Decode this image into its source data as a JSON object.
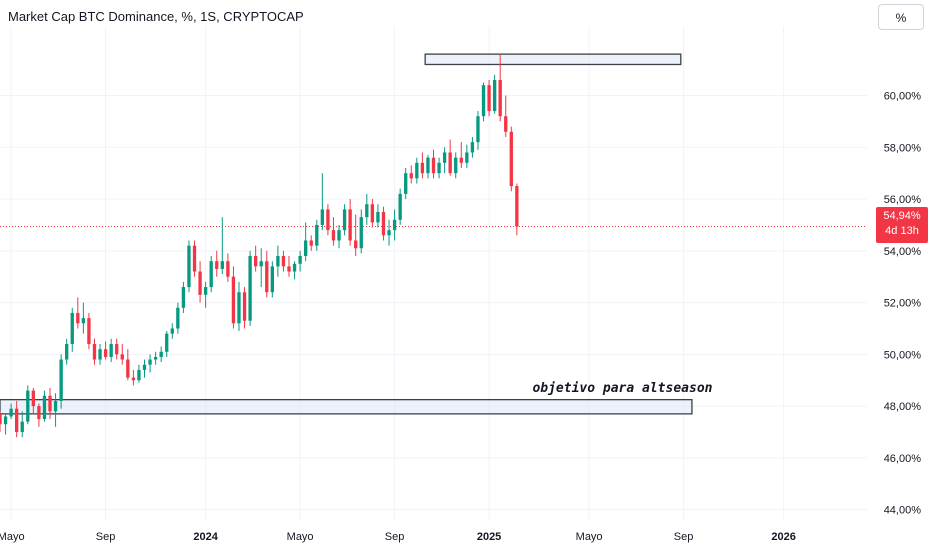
{
  "chart_data": {
    "type": "candlestick",
    "title": "Market Cap BTC Dominance, %, 1S, CRYPTOCAP",
    "y_scale_button": "%",
    "ylim": [
      43.6,
      62.3
    ],
    "y_ticks": [
      "60,00%",
      "58,00%",
      "56,00%",
      "54,00%",
      "52,00%",
      "50,00%",
      "48,00%",
      "46,00%",
      "44,00%"
    ],
    "y_tick_values": [
      60,
      58,
      56,
      54,
      52,
      50,
      48,
      46,
      44
    ],
    "x_ticks": [
      {
        "label": "Mayo",
        "bold": false
      },
      {
        "label": "Sep",
        "bold": false
      },
      {
        "label": "2024",
        "bold": true
      },
      {
        "label": "Mayo",
        "bold": false
      },
      {
        "label": "Sep",
        "bold": false
      },
      {
        "label": "2025",
        "bold": true
      },
      {
        "label": "Mayo",
        "bold": false
      },
      {
        "label": "Sep",
        "bold": false
      },
      {
        "label": "2026",
        "bold": true
      }
    ],
    "x_tick_weeks": [
      13,
      30,
      48,
      65,
      82,
      99,
      117,
      134,
      152
    ],
    "week_range": [
      11,
      167
    ],
    "last_price": "54,94%",
    "last_price_value": 54.94,
    "countdown": "4d 13h",
    "up_color": "#089981",
    "down_color": "#f23645",
    "candles_start_week": 11,
    "candles": [
      [
        47.7,
        47.8,
        47.0,
        47.3
      ],
      [
        47.3,
        47.7,
        46.9,
        47.6
      ],
      [
        47.6,
        48.1,
        47.5,
        47.9
      ],
      [
        47.9,
        48.2,
        46.8,
        47.0
      ],
      [
        47.0,
        47.8,
        46.8,
        47.4
      ],
      [
        47.4,
        48.8,
        47.3,
        48.6
      ],
      [
        48.6,
        48.7,
        47.7,
        48.0
      ],
      [
        48.0,
        48.1,
        47.2,
        47.5
      ],
      [
        47.5,
        48.6,
        47.4,
        48.4
      ],
      [
        48.4,
        48.7,
        47.5,
        47.8
      ],
      [
        47.8,
        48.5,
        47.2,
        48.2
      ],
      [
        48.2,
        50.0,
        47.9,
        49.8
      ],
      [
        49.8,
        50.6,
        49.6,
        50.4
      ],
      [
        50.4,
        51.8,
        50.1,
        51.6
      ],
      [
        51.6,
        52.2,
        51.0,
        51.2
      ],
      [
        51.2,
        52.0,
        50.8,
        51.4
      ],
      [
        51.4,
        51.6,
        50.2,
        50.4
      ],
      [
        50.4,
        50.6,
        49.6,
        49.8
      ],
      [
        49.8,
        50.4,
        49.6,
        50.2
      ],
      [
        50.2,
        50.5,
        49.8,
        49.9
      ],
      [
        49.9,
        50.6,
        49.7,
        50.4
      ],
      [
        50.4,
        50.6,
        49.8,
        50.0
      ],
      [
        50.0,
        50.4,
        49.6,
        49.8
      ],
      [
        49.8,
        50.2,
        49.0,
        49.1
      ],
      [
        49.1,
        49.4,
        48.8,
        49.0
      ],
      [
        49.0,
        49.6,
        48.9,
        49.4
      ],
      [
        49.4,
        49.8,
        49.1,
        49.6
      ],
      [
        49.6,
        50.0,
        49.3,
        49.8
      ],
      [
        49.8,
        50.1,
        49.6,
        49.9
      ],
      [
        49.9,
        50.3,
        49.7,
        50.1
      ],
      [
        50.1,
        50.9,
        49.9,
        50.8
      ],
      [
        50.8,
        51.2,
        50.6,
        51.0
      ],
      [
        51.0,
        52.0,
        50.8,
        51.8
      ],
      [
        51.8,
        52.8,
        51.6,
        52.6
      ],
      [
        52.6,
        54.4,
        52.4,
        54.2
      ],
      [
        54.2,
        54.4,
        53.0,
        53.2
      ],
      [
        53.2,
        53.6,
        52.0,
        52.3
      ],
      [
        52.3,
        52.8,
        51.8,
        52.6
      ],
      [
        52.6,
        53.8,
        52.4,
        53.6
      ],
      [
        53.6,
        54.0,
        53.0,
        53.3
      ],
      [
        53.3,
        55.3,
        53.1,
        53.6
      ],
      [
        53.6,
        53.9,
        52.8,
        53.0
      ],
      [
        53.0,
        53.4,
        51.0,
        51.2
      ],
      [
        51.2,
        52.8,
        50.9,
        52.4
      ],
      [
        52.4,
        52.6,
        51.0,
        51.3
      ],
      [
        51.3,
        54.0,
        51.1,
        53.8
      ],
      [
        53.8,
        54.2,
        53.2,
        53.4
      ],
      [
        53.4,
        54.1,
        52.6,
        53.6
      ],
      [
        53.6,
        54.0,
        52.2,
        52.4
      ],
      [
        52.4,
        53.6,
        52.2,
        53.4
      ],
      [
        53.4,
        54.2,
        53.0,
        53.8
      ],
      [
        53.8,
        54.0,
        53.2,
        53.4
      ],
      [
        53.4,
        53.8,
        53.0,
        53.2
      ],
      [
        53.2,
        53.6,
        52.9,
        53.5
      ],
      [
        53.5,
        54.0,
        53.2,
        53.8
      ],
      [
        53.8,
        55.1,
        53.6,
        54.4
      ],
      [
        54.4,
        54.6,
        54.0,
        54.2
      ],
      [
        54.2,
        55.2,
        54.0,
        55.0
      ],
      [
        55.0,
        57.0,
        54.8,
        55.6
      ],
      [
        55.6,
        55.8,
        54.6,
        54.8
      ],
      [
        54.8,
        55.3,
        54.2,
        54.4
      ],
      [
        54.4,
        55.0,
        54.1,
        54.8
      ],
      [
        54.8,
        55.8,
        54.6,
        55.6
      ],
      [
        55.6,
        56.0,
        54.2,
        54.4
      ],
      [
        54.4,
        55.4,
        53.8,
        54.1
      ],
      [
        54.1,
        55.6,
        53.9,
        55.3
      ],
      [
        55.3,
        56.2,
        55.0,
        55.8
      ],
      [
        55.8,
        56.0,
        54.9,
        55.1
      ],
      [
        55.1,
        55.8,
        54.9,
        55.5
      ],
      [
        55.5,
        55.7,
        54.4,
        54.6
      ],
      [
        54.6,
        55.2,
        54.2,
        54.8
      ],
      [
        54.8,
        55.6,
        54.4,
        55.2
      ],
      [
        55.2,
        56.4,
        55.0,
        56.2
      ],
      [
        56.2,
        57.2,
        56.0,
        57.0
      ],
      [
        57.0,
        57.3,
        56.6,
        56.8
      ],
      [
        56.8,
        57.6,
        56.6,
        57.4
      ],
      [
        57.4,
        57.8,
        56.8,
        57.0
      ],
      [
        57.0,
        57.7,
        56.8,
        57.6
      ],
      [
        57.6,
        57.9,
        56.8,
        57.0
      ],
      [
        57.0,
        57.6,
        56.8,
        57.4
      ],
      [
        57.4,
        58.0,
        57.0,
        57.8
      ],
      [
        57.8,
        58.3,
        56.9,
        57.0
      ],
      [
        57.0,
        57.8,
        56.8,
        57.6
      ],
      [
        57.6,
        58.2,
        57.2,
        57.4
      ],
      [
        57.4,
        58.1,
        57.2,
        57.8
      ],
      [
        57.8,
        58.4,
        57.6,
        58.2
      ],
      [
        58.2,
        59.4,
        57.9,
        59.2
      ],
      [
        59.2,
        60.5,
        59.0,
        60.4
      ],
      [
        60.4,
        60.6,
        59.2,
        59.4
      ],
      [
        59.4,
        60.8,
        59.3,
        60.6
      ],
      [
        60.6,
        61.6,
        59.0,
        59.2
      ],
      [
        59.2,
        60.0,
        58.4,
        58.6
      ],
      [
        58.6,
        58.8,
        56.3,
        56.5
      ],
      [
        56.5,
        56.6,
        54.6,
        54.94
      ]
    ],
    "zones": [
      {
        "label": "",
        "y_top": 61.6,
        "y_bottom": 61.2,
        "week_start": 87.5,
        "week_end": 133.5
      },
      {
        "label": "",
        "y_top": 48.25,
        "y_bottom": 47.7,
        "week_start": 11,
        "week_end": 135.5
      }
    ],
    "annotations": [
      {
        "text": "objetivo para altseason",
        "week": 123,
        "y": 48.55
      }
    ]
  }
}
